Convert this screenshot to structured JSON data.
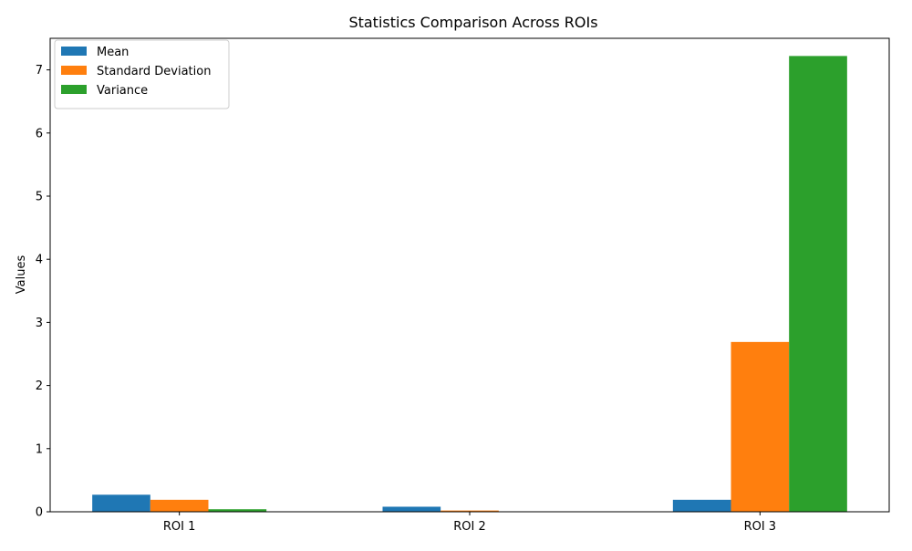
{
  "chart_data": {
    "type": "bar",
    "title": "Statistics Comparison Across ROIs",
    "xlabel": "",
    "ylabel": "Values",
    "categories": [
      "ROI 1",
      "ROI 2",
      "ROI 3"
    ],
    "series": [
      {
        "name": "Mean",
        "color": "#1f77b4",
        "values": [
          0.27,
          0.08,
          0.19
        ]
      },
      {
        "name": "Standard Deviation",
        "color": "#ff7f0e",
        "values": [
          0.19,
          0.02,
          2.69
        ]
      },
      {
        "name": "Variance",
        "color": "#2ca02c",
        "values": [
          0.04,
          0.0004,
          7.22
        ]
      }
    ],
    "ylim": [
      0,
      7.5
    ],
    "yticks": [
      0,
      1,
      2,
      3,
      4,
      5,
      6,
      7
    ],
    "ytick_labels": [
      "0",
      "1",
      "2",
      "3",
      "4",
      "5",
      "6",
      "7"
    ],
    "grid": false,
    "legend_position": "top-left"
  }
}
